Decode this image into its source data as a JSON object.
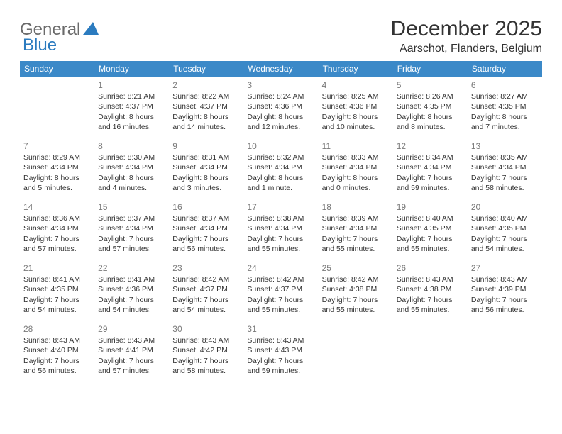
{
  "logo": {
    "text1": "General",
    "text2": "Blue"
  },
  "header": {
    "title": "December 2025",
    "location": "Aarschot, Flanders, Belgium"
  },
  "style": {
    "header_bg": "#3b89c8",
    "header_fg": "#ffffff",
    "row_border": "#3b6fa0",
    "text_color": "#333333",
    "daynum_color": "#7a7a7a",
    "logo_gray": "#6a6a6a",
    "logo_blue": "#2b7bbf",
    "title_fontsize": 30,
    "location_fontsize": 16,
    "weekday_fontsize": 12,
    "cell_fontsize": 10.5
  },
  "weekdays": [
    "Sunday",
    "Monday",
    "Tuesday",
    "Wednesday",
    "Thursday",
    "Friday",
    "Saturday"
  ],
  "weeks": [
    [
      {
        "blank": true
      },
      {
        "day": "1",
        "sunrise": "Sunrise: 8:21 AM",
        "sunset": "Sunset: 4:37 PM",
        "dl1": "Daylight: 8 hours",
        "dl2": "and 16 minutes."
      },
      {
        "day": "2",
        "sunrise": "Sunrise: 8:22 AM",
        "sunset": "Sunset: 4:37 PM",
        "dl1": "Daylight: 8 hours",
        "dl2": "and 14 minutes."
      },
      {
        "day": "3",
        "sunrise": "Sunrise: 8:24 AM",
        "sunset": "Sunset: 4:36 PM",
        "dl1": "Daylight: 8 hours",
        "dl2": "and 12 minutes."
      },
      {
        "day": "4",
        "sunrise": "Sunrise: 8:25 AM",
        "sunset": "Sunset: 4:36 PM",
        "dl1": "Daylight: 8 hours",
        "dl2": "and 10 minutes."
      },
      {
        "day": "5",
        "sunrise": "Sunrise: 8:26 AM",
        "sunset": "Sunset: 4:35 PM",
        "dl1": "Daylight: 8 hours",
        "dl2": "and 8 minutes."
      },
      {
        "day": "6",
        "sunrise": "Sunrise: 8:27 AM",
        "sunset": "Sunset: 4:35 PM",
        "dl1": "Daylight: 8 hours",
        "dl2": "and 7 minutes."
      }
    ],
    [
      {
        "day": "7",
        "sunrise": "Sunrise: 8:29 AM",
        "sunset": "Sunset: 4:34 PM",
        "dl1": "Daylight: 8 hours",
        "dl2": "and 5 minutes."
      },
      {
        "day": "8",
        "sunrise": "Sunrise: 8:30 AM",
        "sunset": "Sunset: 4:34 PM",
        "dl1": "Daylight: 8 hours",
        "dl2": "and 4 minutes."
      },
      {
        "day": "9",
        "sunrise": "Sunrise: 8:31 AM",
        "sunset": "Sunset: 4:34 PM",
        "dl1": "Daylight: 8 hours",
        "dl2": "and 3 minutes."
      },
      {
        "day": "10",
        "sunrise": "Sunrise: 8:32 AM",
        "sunset": "Sunset: 4:34 PM",
        "dl1": "Daylight: 8 hours",
        "dl2": "and 1 minute."
      },
      {
        "day": "11",
        "sunrise": "Sunrise: 8:33 AM",
        "sunset": "Sunset: 4:34 PM",
        "dl1": "Daylight: 8 hours",
        "dl2": "and 0 minutes."
      },
      {
        "day": "12",
        "sunrise": "Sunrise: 8:34 AM",
        "sunset": "Sunset: 4:34 PM",
        "dl1": "Daylight: 7 hours",
        "dl2": "and 59 minutes."
      },
      {
        "day": "13",
        "sunrise": "Sunrise: 8:35 AM",
        "sunset": "Sunset: 4:34 PM",
        "dl1": "Daylight: 7 hours",
        "dl2": "and 58 minutes."
      }
    ],
    [
      {
        "day": "14",
        "sunrise": "Sunrise: 8:36 AM",
        "sunset": "Sunset: 4:34 PM",
        "dl1": "Daylight: 7 hours",
        "dl2": "and 57 minutes."
      },
      {
        "day": "15",
        "sunrise": "Sunrise: 8:37 AM",
        "sunset": "Sunset: 4:34 PM",
        "dl1": "Daylight: 7 hours",
        "dl2": "and 57 minutes."
      },
      {
        "day": "16",
        "sunrise": "Sunrise: 8:37 AM",
        "sunset": "Sunset: 4:34 PM",
        "dl1": "Daylight: 7 hours",
        "dl2": "and 56 minutes."
      },
      {
        "day": "17",
        "sunrise": "Sunrise: 8:38 AM",
        "sunset": "Sunset: 4:34 PM",
        "dl1": "Daylight: 7 hours",
        "dl2": "and 55 minutes."
      },
      {
        "day": "18",
        "sunrise": "Sunrise: 8:39 AM",
        "sunset": "Sunset: 4:34 PM",
        "dl1": "Daylight: 7 hours",
        "dl2": "and 55 minutes."
      },
      {
        "day": "19",
        "sunrise": "Sunrise: 8:40 AM",
        "sunset": "Sunset: 4:35 PM",
        "dl1": "Daylight: 7 hours",
        "dl2": "and 55 minutes."
      },
      {
        "day": "20",
        "sunrise": "Sunrise: 8:40 AM",
        "sunset": "Sunset: 4:35 PM",
        "dl1": "Daylight: 7 hours",
        "dl2": "and 54 minutes."
      }
    ],
    [
      {
        "day": "21",
        "sunrise": "Sunrise: 8:41 AM",
        "sunset": "Sunset: 4:35 PM",
        "dl1": "Daylight: 7 hours",
        "dl2": "and 54 minutes."
      },
      {
        "day": "22",
        "sunrise": "Sunrise: 8:41 AM",
        "sunset": "Sunset: 4:36 PM",
        "dl1": "Daylight: 7 hours",
        "dl2": "and 54 minutes."
      },
      {
        "day": "23",
        "sunrise": "Sunrise: 8:42 AM",
        "sunset": "Sunset: 4:37 PM",
        "dl1": "Daylight: 7 hours",
        "dl2": "and 54 minutes."
      },
      {
        "day": "24",
        "sunrise": "Sunrise: 8:42 AM",
        "sunset": "Sunset: 4:37 PM",
        "dl1": "Daylight: 7 hours",
        "dl2": "and 55 minutes."
      },
      {
        "day": "25",
        "sunrise": "Sunrise: 8:42 AM",
        "sunset": "Sunset: 4:38 PM",
        "dl1": "Daylight: 7 hours",
        "dl2": "and 55 minutes."
      },
      {
        "day": "26",
        "sunrise": "Sunrise: 8:43 AM",
        "sunset": "Sunset: 4:38 PM",
        "dl1": "Daylight: 7 hours",
        "dl2": "and 55 minutes."
      },
      {
        "day": "27",
        "sunrise": "Sunrise: 8:43 AM",
        "sunset": "Sunset: 4:39 PM",
        "dl1": "Daylight: 7 hours",
        "dl2": "and 56 minutes."
      }
    ],
    [
      {
        "day": "28",
        "sunrise": "Sunrise: 8:43 AM",
        "sunset": "Sunset: 4:40 PM",
        "dl1": "Daylight: 7 hours",
        "dl2": "and 56 minutes."
      },
      {
        "day": "29",
        "sunrise": "Sunrise: 8:43 AM",
        "sunset": "Sunset: 4:41 PM",
        "dl1": "Daylight: 7 hours",
        "dl2": "and 57 minutes."
      },
      {
        "day": "30",
        "sunrise": "Sunrise: 8:43 AM",
        "sunset": "Sunset: 4:42 PM",
        "dl1": "Daylight: 7 hours",
        "dl2": "and 58 minutes."
      },
      {
        "day": "31",
        "sunrise": "Sunrise: 8:43 AM",
        "sunset": "Sunset: 4:43 PM",
        "dl1": "Daylight: 7 hours",
        "dl2": "and 59 minutes."
      },
      {
        "blank": true
      },
      {
        "blank": true
      },
      {
        "blank": true
      }
    ]
  ]
}
